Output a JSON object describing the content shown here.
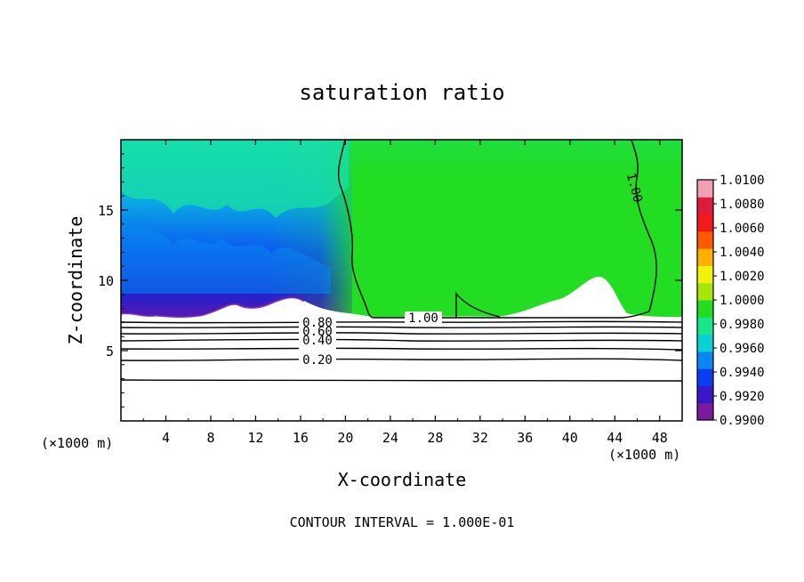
{
  "chart_data": {
    "type": "heatmap",
    "title": "saturation ratio",
    "xlabel": "X-coordinate",
    "ylabel": "Z-coordinate",
    "x_unit": "(×1000 m)",
    "x_unit_right": "(×1000 m)",
    "xlim": [
      0,
      50
    ],
    "ylim": [
      0,
      20
    ],
    "x_ticks": [
      "4",
      "8",
      "12",
      "16",
      "20",
      "24",
      "28",
      "32",
      "36",
      "40",
      "44",
      "48"
    ],
    "y_ticks": [
      "5",
      "10",
      "15"
    ],
    "contour_interval_text": "CONTOUR INTERVAL = 1.000E-01",
    "colorbar": {
      "labels": [
        "1.0100",
        "1.0080",
        "1.0060",
        "1.0040",
        "1.0020",
        "1.0000",
        "0.9980",
        "0.9960",
        "0.9940",
        "0.9920",
        "0.9900"
      ],
      "colors": [
        "#7a1a9c",
        "#3a18c8",
        "#0a3cf0",
        "#0a86f0",
        "#0ad2d2",
        "#17e68a",
        "#22dd22",
        "#a8e60a",
        "#f2f20a",
        "#ffb000",
        "#ff5a00",
        "#f21a1a",
        "#e01a3c",
        "#f0a0b0"
      ]
    },
    "contour_labels": [
      {
        "text": "1.00",
        "x": 26.5,
        "y": 7.2
      },
      {
        "text": "1.00",
        "x": 45.5,
        "y": 16.7
      },
      {
        "text": "0.80",
        "x": 17.5,
        "y": 6.9
      },
      {
        "text": "0.60",
        "x": 17.5,
        "y": 6.5
      },
      {
        "text": "0.40",
        "x": 17.5,
        "y": 5.8
      },
      {
        "text": "0.20",
        "x": 17.5,
        "y": 4.6
      }
    ]
  }
}
